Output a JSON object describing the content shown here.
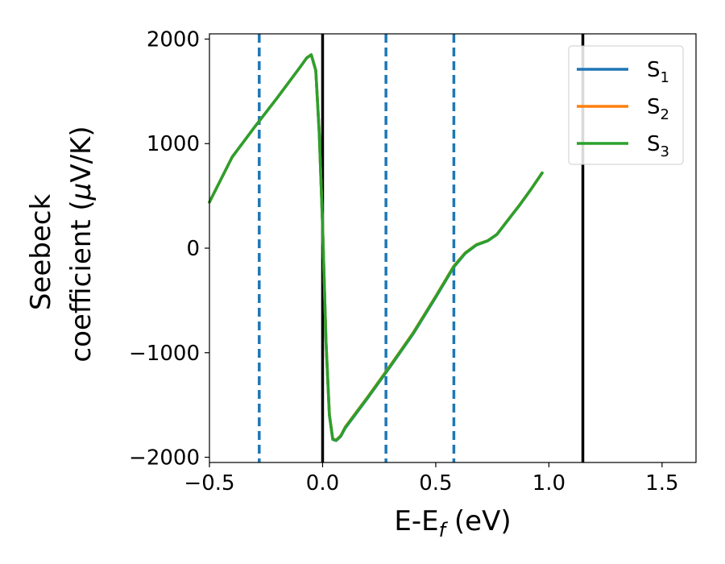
{
  "chart_data": {
    "type": "line",
    "xlabel": "E-E",
    "xlabel_sub": "f",
    "xlabel_unit": " (eV)",
    "ylabel_line1": "Seebeck",
    "ylabel_line2": "coefficient  (",
    "ylabel_mu": "μ",
    "ylabel_unit": "V/K)",
    "xlim": [
      -0.5,
      1.65
    ],
    "ylim": [
      -2050,
      2050
    ],
    "xticks": [
      -0.5,
      0.0,
      0.5,
      1.0,
      1.5
    ],
    "xtick_labels": [
      "−0.5",
      "0.0",
      "0.5",
      "1.0",
      "1.5"
    ],
    "yticks": [
      -2000,
      -1000,
      0,
      1000,
      2000
    ],
    "ytick_labels": [
      "−2000",
      "−1000",
      "0",
      "1000",
      "2000"
    ],
    "grid": false,
    "legend_position": "top-right",
    "vlines_solid": {
      "color": "#000000",
      "x": [
        0.0,
        1.15
      ]
    },
    "vlines_dashed": {
      "color": "#1f77b4",
      "x": [
        -0.28,
        0.28,
        0.58
      ]
    },
    "x": [
      -0.5,
      -0.4,
      -0.3,
      -0.2,
      -0.1,
      -0.07,
      -0.05,
      -0.03,
      -0.015,
      0.0,
      0.015,
      0.03,
      0.045,
      0.06,
      0.08,
      0.1,
      0.2,
      0.3,
      0.4,
      0.5,
      0.58,
      0.63,
      0.68,
      0.73,
      0.77,
      0.82,
      0.87,
      0.92,
      0.97
    ],
    "series": [
      {
        "name": "S",
        "sub": "1",
        "color": "#1f77b4",
        "values": [
          440,
          870,
          1160,
          1440,
          1730,
          1820,
          1850,
          1700,
          1100,
          200,
          -900,
          -1600,
          -1830,
          -1840,
          -1800,
          -1720,
          -1430,
          -1130,
          -820,
          -470,
          -180,
          -50,
          30,
          70,
          130,
          270,
          410,
          560,
          720
        ]
      },
      {
        "name": "S",
        "sub": "2",
        "color": "#ff7f0e",
        "values": [
          440,
          870,
          1160,
          1440,
          1730,
          1820,
          1850,
          1700,
          1110,
          210,
          -890,
          -1590,
          -1825,
          -1835,
          -1795,
          -1710,
          -1420,
          -1120,
          -810,
          -460,
          -170,
          -45,
          35,
          72,
          132,
          272,
          412,
          560,
          720
        ]
      },
      {
        "name": "S",
        "sub": "3",
        "color": "#2ca02c",
        "values": [
          440,
          870,
          1160,
          1440,
          1730,
          1820,
          1850,
          1700,
          1105,
          205,
          -895,
          -1595,
          -1828,
          -1838,
          -1798,
          -1715,
          -1425,
          -1125,
          -815,
          -465,
          -175,
          -48,
          32,
          71,
          131,
          271,
          411,
          560,
          720
        ]
      }
    ]
  }
}
